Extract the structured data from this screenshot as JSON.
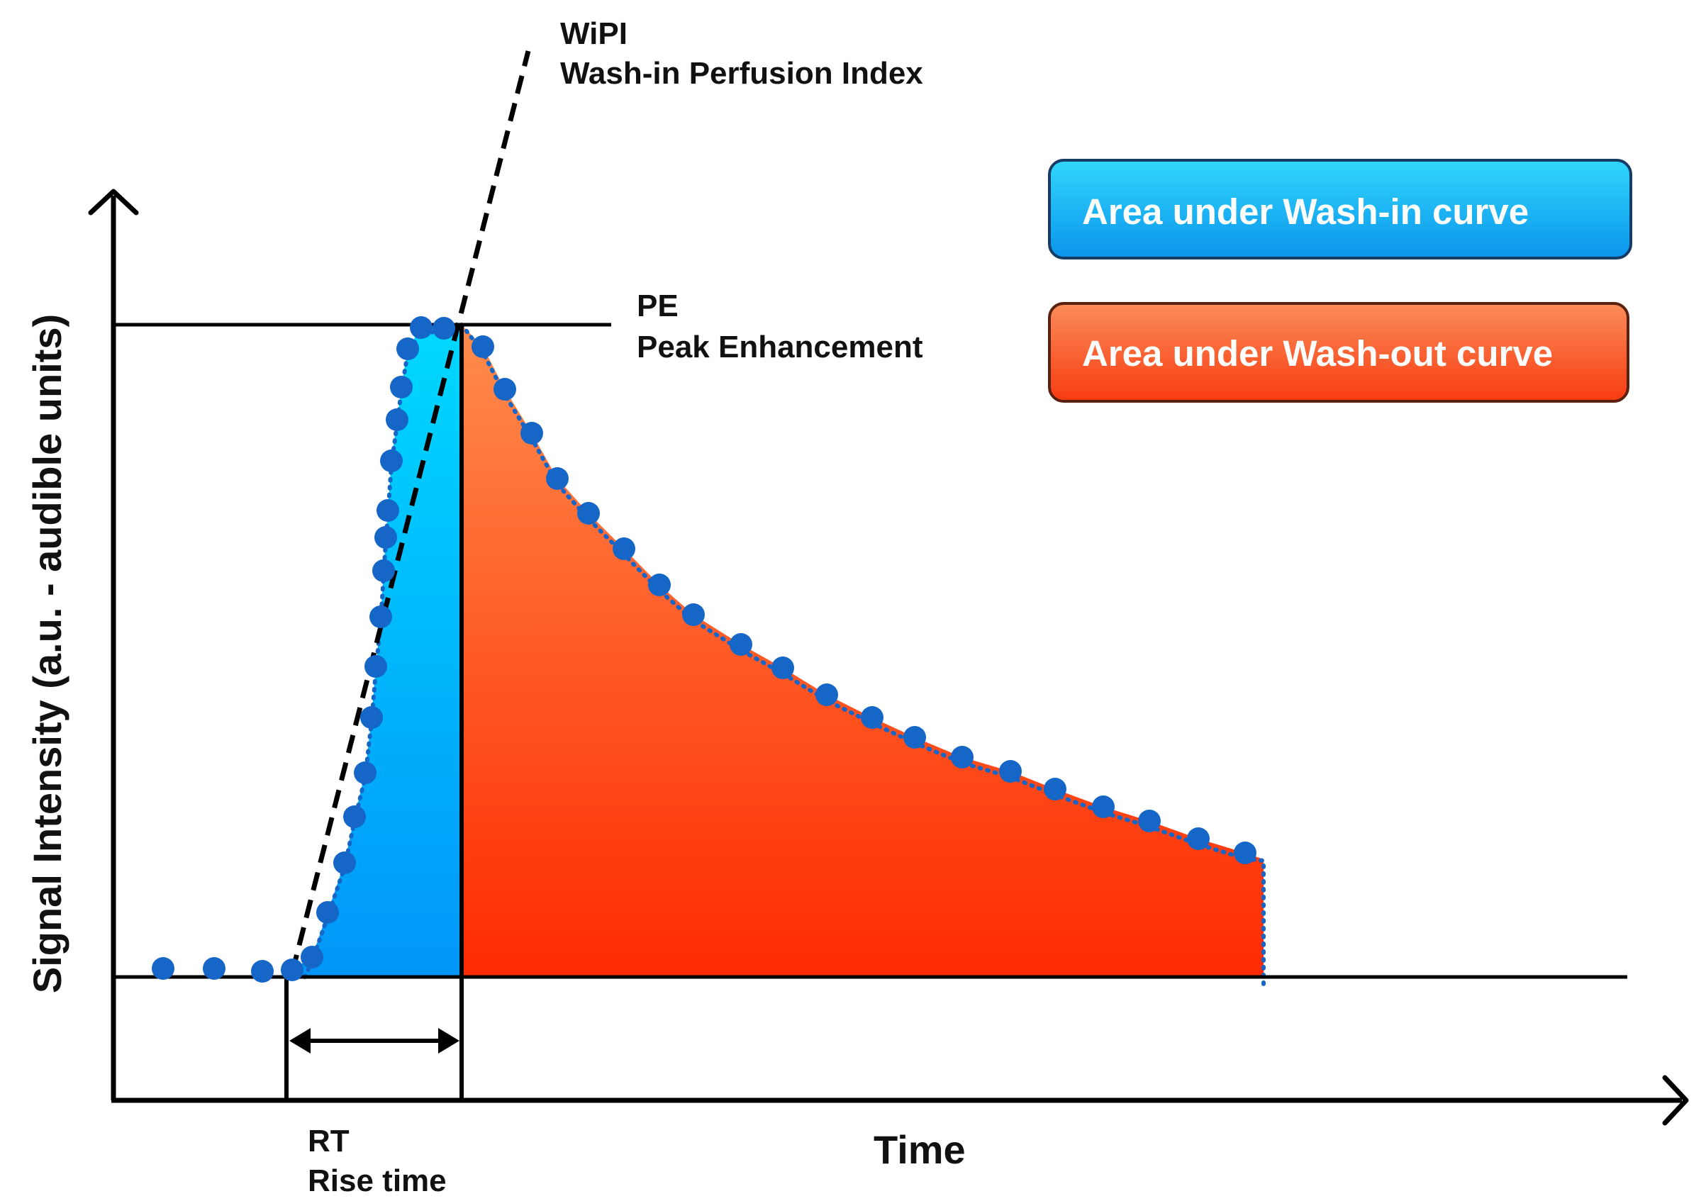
{
  "axes": {
    "x_title": "Time",
    "y_title": "Signal Intensity (a.u. - audible units)"
  },
  "annotations": {
    "wipi": {
      "abbrev": "WiPI",
      "label": "Wash-in Perfusion Index"
    },
    "pe": {
      "abbrev": "PE",
      "label": "Peak Enhancement"
    },
    "rt": {
      "abbrev": "RT",
      "label": "Rise time"
    }
  },
  "legend": [
    {
      "label": "Area under Wash-in curve",
      "color_top": "#31d7fb",
      "color_bottom": "#0b94ec",
      "border": "#163c66"
    },
    {
      "label": "Area under Wash-out curve",
      "color_top": "#fb8d5a",
      "color_bottom": "#f83b10",
      "border": "#5a2010"
    }
  ],
  "colors": {
    "points": "#1566c7",
    "washin_top": "#00d8ff",
    "washin_bottom": "#0096f8",
    "washout_top": "#ff8c4d",
    "washout_bottom": "#ff2a00",
    "lines": "#000000"
  }
}
